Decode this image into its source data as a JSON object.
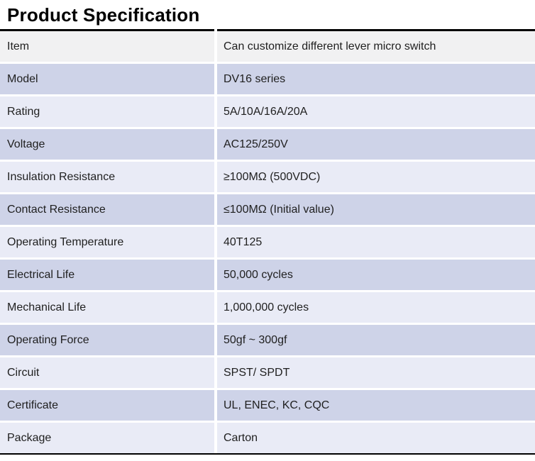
{
  "title": "Product Specification",
  "table": {
    "rows": [
      {
        "label": "Item",
        "value": "Can customize different lever micro switch"
      },
      {
        "label": "Model",
        "value": "DV16 series"
      },
      {
        "label": "Rating",
        "value": "5A/10A/16A/20A"
      },
      {
        "label": "Voltage",
        "value": "AC125/250V"
      },
      {
        "label": "Insulation Resistance",
        "value": "≥100MΩ (500VDC)"
      },
      {
        "label": "Contact Resistance",
        "value": "≤100MΩ (Initial value)"
      },
      {
        "label": "Operating Temperature",
        "value": "40T125"
      },
      {
        "label": "Electrical Life",
        "value": "50,000 cycles"
      },
      {
        "label": "Mechanical Life",
        "value": "1,000,000 cycles"
      },
      {
        "label": "Operating Force",
        "value": "50gf ~ 300gf"
      },
      {
        "label": "Circuit",
        "value": "SPST/ SPDT"
      },
      {
        "label": "Certificate",
        "value": "UL, ENEC, KC, CQC"
      },
      {
        "label": "Package",
        "value": "Carton"
      }
    ]
  },
  "colors": {
    "band_header": "#f1f1f2",
    "band_dark": "#ced3e8",
    "band_light": "#e9ebf6",
    "rule_color": "#000000",
    "text_color": "#1f1f1f"
  }
}
